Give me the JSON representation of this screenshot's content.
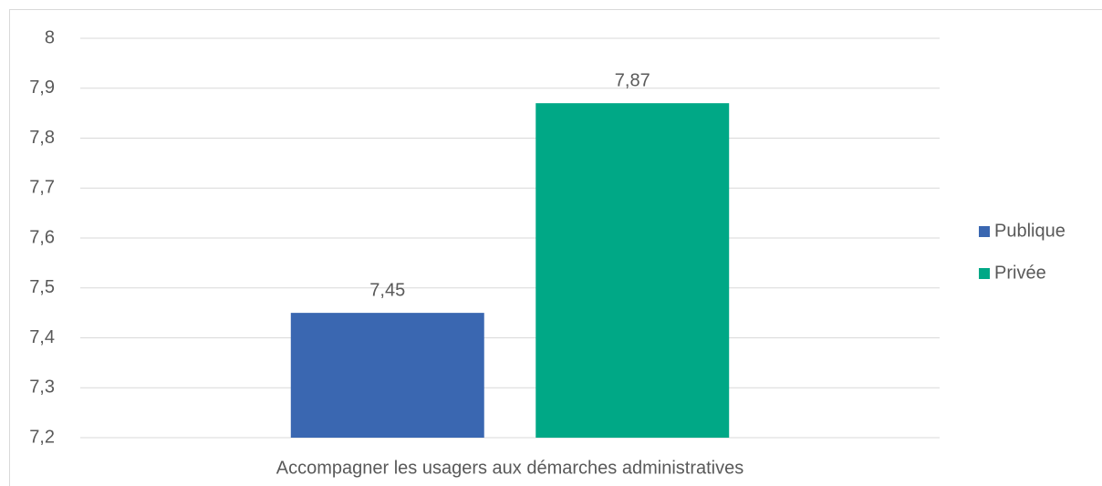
{
  "chart_data": {
    "type": "bar",
    "categories": [
      "Accompagner les usagers aux démarches administratives"
    ],
    "series": [
      {
        "name": "Publique",
        "color": "#3a67b1",
        "values": [
          7.45
        ],
        "value_labels": [
          "7,45"
        ]
      },
      {
        "name": "Privée",
        "color": "#00a886",
        "values": [
          7.87
        ],
        "value_labels": [
          "7,87"
        ]
      }
    ],
    "ylim": [
      7.2,
      8
    ],
    "yticks": [
      {
        "value": 7.2,
        "label": "7,2"
      },
      {
        "value": 7.3,
        "label": "7,3"
      },
      {
        "value": 7.4,
        "label": "7,4"
      },
      {
        "value": 7.5,
        "label": "7,5"
      },
      {
        "value": 7.6,
        "label": "7,6"
      },
      {
        "value": 7.7,
        "label": "7,7"
      },
      {
        "value": 7.8,
        "label": "7,8"
      },
      {
        "value": 7.9,
        "label": "7,9"
      },
      8
    ],
    "grid": true,
    "legend": "right"
  }
}
